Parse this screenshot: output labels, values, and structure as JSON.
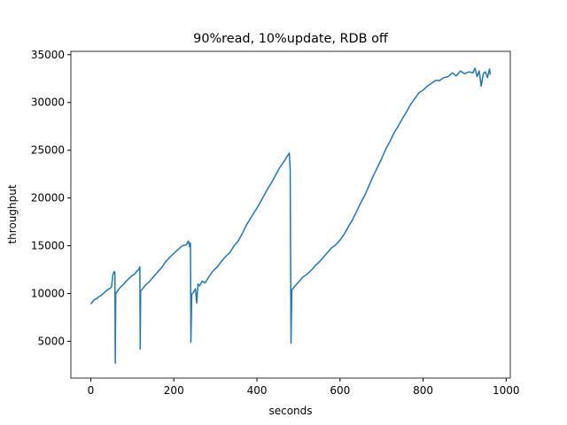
{
  "chart_data": {
    "type": "line",
    "title": "90%read, 10%update, RDB off",
    "x_label": "seconds",
    "y_label": "throughput",
    "color": "#1f77b4",
    "x": [
      0,
      5,
      10,
      15,
      20,
      25,
      30,
      35,
      40,
      45,
      50,
      53,
      56,
      58,
      59,
      60,
      65,
      70,
      75,
      80,
      85,
      90,
      95,
      100,
      105,
      110,
      115,
      118,
      119,
      120,
      125,
      130,
      140,
      150,
      160,
      170,
      180,
      190,
      200,
      210,
      220,
      230,
      235,
      238,
      240,
      241,
      243,
      248,
      252,
      255,
      258,
      262,
      268,
      275,
      285,
      295,
      305,
      315,
      325,
      335,
      345,
      355,
      365,
      375,
      385,
      395,
      405,
      415,
      425,
      435,
      445,
      455,
      465,
      472,
      478,
      480,
      482,
      484,
      490,
      500,
      510,
      520,
      530,
      540,
      550,
      560,
      570,
      580,
      590,
      600,
      610,
      620,
      630,
      640,
      650,
      660,
      670,
      680,
      690,
      700,
      710,
      720,
      730,
      740,
      750,
      760,
      770,
      780,
      790,
      800,
      810,
      820,
      830,
      840,
      850,
      860,
      870,
      880,
      890,
      900,
      910,
      920,
      925,
      930,
      935,
      940,
      945,
      950,
      955,
      960,
      962
    ],
    "values": [
      8900,
      9200,
      9400,
      9500,
      9700,
      9800,
      10000,
      10200,
      10400,
      10500,
      10700,
      11900,
      12300,
      12200,
      2700,
      10000,
      10300,
      10600,
      10800,
      11000,
      11300,
      11500,
      11700,
      11900,
      12000,
      12300,
      12500,
      12800,
      4200,
      10300,
      10500,
      10800,
      11200,
      11700,
      12200,
      12700,
      13300,
      13800,
      14200,
      14600,
      15000,
      15100,
      15500,
      14900,
      15300,
      4900,
      9900,
      10200,
      10500,
      9000,
      11000,
      10800,
      11300,
      11100,
      11800,
      12400,
      12800,
      13400,
      13900,
      14300,
      15000,
      15500,
      16300,
      17200,
      17900,
      18600,
      19300,
      20100,
      20900,
      21600,
      22400,
      23200,
      23800,
      24300,
      24700,
      23000,
      4800,
      10400,
      10700,
      11200,
      11700,
      12000,
      12400,
      12900,
      13300,
      13800,
      14300,
      14800,
      15100,
      15600,
      16200,
      17000,
      17700,
      18600,
      19500,
      20300,
      21300,
      22300,
      23200,
      24100,
      25100,
      25900,
      26800,
      27500,
      28300,
      29000,
      29800,
      30400,
      31000,
      31300,
      31700,
      32000,
      32300,
      32300,
      32600,
      32700,
      33100,
      32800,
      33300,
      33000,
      33200,
      33100,
      33600,
      32700,
      33300,
      31700,
      33000,
      33200,
      32600,
      33500,
      32900
    ],
    "xlim": [
      -48,
      1010
    ],
    "ylim": [
      1150,
      35350
    ],
    "xticks": [
      0,
      200,
      400,
      600,
      800,
      1000
    ],
    "yticks": [
      5000,
      10000,
      15000,
      20000,
      25000,
      30000,
      35000
    ]
  }
}
